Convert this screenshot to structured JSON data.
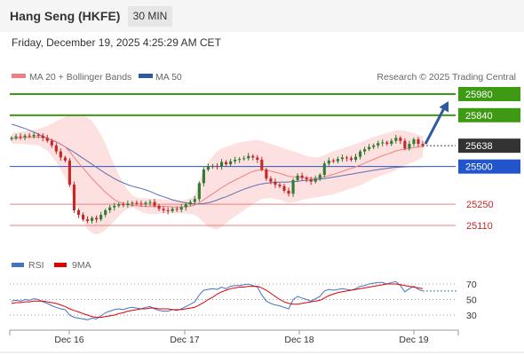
{
  "header": {
    "title": "Hang Seng (HKFE)",
    "timeframe": "30 MIN"
  },
  "datetime": "Friday, December 19, 2025 4:25:29 AM CET",
  "legend": {
    "ma_bb": "MA 20 + Bollinger Bands",
    "ma50": "MA 50",
    "copyright": "Research © 2025 Trading Central"
  },
  "rsi_legend": {
    "rsi": "RSI",
    "ma9": "9MA"
  },
  "colors": {
    "up_candle": "#2e7d32",
    "down_candle": "#c62828",
    "band_fill": "#fde0e0",
    "ma20": "#f08080",
    "ma50": "#5a6fb5",
    "resistance": "#3d9a12",
    "pivot": "#2255cc",
    "support": "#e88080",
    "arrow": "#2d5a9e",
    "price_tag": "#333333",
    "rsi": "#4472c4",
    "rsi_ma": "#e00000"
  },
  "chart_data": [
    {
      "type": "candlestick",
      "ylim": [
        25050,
        26010
      ],
      "x_labels": [
        "Dec 16",
        "Dec 17",
        "Dec 18",
        "Dec 19"
      ],
      "levels": [
        {
          "value": 25980,
          "label": "25980",
          "kind": "resistance"
        },
        {
          "value": 25840,
          "label": "25840",
          "kind": "resistance"
        },
        {
          "value": 25638,
          "label": "25638",
          "kind": "last"
        },
        {
          "value": 25500,
          "label": "25500",
          "kind": "pivot"
        },
        {
          "value": 25250,
          "label": "25250",
          "kind": "support"
        },
        {
          "value": 25110,
          "label": "25110",
          "kind": "support"
        }
      ],
      "closes": [
        25690,
        25700,
        25695,
        25705,
        25700,
        25710,
        25705,
        25690,
        25670,
        25640,
        25600,
        25560,
        25540,
        25380,
        25210,
        25180,
        25150,
        25140,
        25160,
        25150,
        25180,
        25210,
        25230,
        25240,
        25250,
        25245,
        25255,
        25260,
        25255,
        25250,
        25260,
        25265,
        25240,
        25220,
        25210,
        25205,
        25220,
        25215,
        25230,
        25250,
        25265,
        25285,
        25390,
        25480,
        25500,
        25505,
        25500,
        25530,
        25515,
        25535,
        25545,
        25550,
        25555,
        25570,
        25560,
        25545,
        25480,
        25420,
        25400,
        25380,
        25370,
        25340,
        25320,
        25410,
        25440,
        25425,
        25415,
        25400,
        25420,
        25445,
        25520,
        25540,
        25535,
        25550,
        25560,
        25555,
        25545,
        25565,
        25600,
        25615,
        25630,
        25640,
        25655,
        25660,
        25650,
        25670,
        25690,
        25670,
        25620,
        25650,
        25680,
        25650,
        25638
      ],
      "ma20": [
        25685,
        25688,
        25690,
        25692,
        25693,
        25695,
        25696,
        25693,
        25688,
        25678,
        25665,
        25648,
        25630,
        25600,
        25560,
        25525,
        25490,
        25455,
        25420,
        25390,
        25360,
        25330,
        25305,
        25280,
        25265,
        25255,
        25248,
        25243,
        25240,
        25237,
        25236,
        25235,
        25236,
        25236,
        25236,
        25235,
        25233,
        25232,
        25232,
        25234,
        25238,
        25245,
        25260,
        25280,
        25300,
        25320,
        25340,
        25360,
        25378,
        25395,
        25410,
        25425,
        25440,
        25455,
        25468,
        25475,
        25478,
        25476,
        25470,
        25462,
        25455,
        25445,
        25435,
        25432,
        25430,
        25428,
        25425,
        25422,
        25422,
        25425,
        25432,
        25440,
        25448,
        25458,
        25468,
        25478,
        25488,
        25498,
        25510,
        25522,
        25535,
        25548,
        25560,
        25572,
        25582,
        25592,
        25603,
        25610,
        25615,
        25620,
        25625,
        25630,
        25635
      ],
      "bb_upper": [
        25720,
        25725,
        25730,
        25735,
        25740,
        25745,
        25750,
        25760,
        25770,
        25785,
        25800,
        25815,
        25830,
        25840,
        25845,
        25845,
        25840,
        25825,
        25800,
        25760,
        25710,
        25650,
        25580,
        25510,
        25445,
        25390,
        25345,
        25310,
        25295,
        25290,
        25290,
        25288,
        25287,
        25285,
        25282,
        25280,
        25278,
        25276,
        25275,
        25280,
        25290,
        25310,
        25400,
        25480,
        25530,
        25570,
        25600,
        25620,
        25630,
        25640,
        25650,
        25660,
        25665,
        25670,
        25675,
        25675,
        25670,
        25660,
        25650,
        25640,
        25630,
        25620,
        25610,
        25600,
        25590,
        25580,
        25570,
        25565,
        25560,
        25565,
        25575,
        25590,
        25600,
        25610,
        25620,
        25630,
        25640,
        25650,
        25660,
        25672,
        25685,
        25695,
        25705,
        25715,
        25722,
        25730,
        25740,
        25740,
        25735,
        25730,
        25720,
        25710,
        25700
      ],
      "bb_lower": [
        25650,
        25650,
        25650,
        25648,
        25645,
        25643,
        25640,
        25625,
        25605,
        25570,
        25530,
        25480,
        25430,
        25360,
        25275,
        25205,
        25140,
        25085,
        25060,
        25050,
        25060,
        25080,
        25110,
        25140,
        25170,
        25200,
        25220,
        25230,
        25215,
        25200,
        25190,
        25185,
        25185,
        25187,
        25190,
        25192,
        25190,
        25188,
        25190,
        25188,
        25186,
        25180,
        25160,
        25130,
        25100,
        25090,
        25085,
        25100,
        25125,
        25150,
        25170,
        25190,
        25210,
        25230,
        25250,
        25270,
        25285,
        25290,
        25290,
        25285,
        25280,
        25270,
        25260,
        25262,
        25270,
        25280,
        25285,
        25290,
        25295,
        25300,
        25305,
        25310,
        25315,
        25325,
        25335,
        25345,
        25355,
        25365,
        25375,
        25390,
        25405,
        25420,
        25432,
        25442,
        25452,
        25462,
        25475,
        25490,
        25505,
        25520,
        25530,
        25545,
        25560
      ],
      "ma50": [
        25780,
        25772,
        25762,
        25752,
        25740,
        25728,
        25715,
        25700,
        25688,
        25675,
        25662,
        25648,
        25630,
        25612,
        25595,
        25575,
        25555,
        25535,
        25515,
        25495,
        25475,
        25455,
        25438,
        25420,
        25405,
        25392,
        25380,
        25370,
        25362,
        25355,
        25345,
        25335,
        25322,
        25310,
        25300,
        25290,
        25280,
        25272,
        25265,
        25260,
        25255,
        25252,
        25252,
        25255,
        25260,
        25268,
        25278,
        25290,
        25300,
        25312,
        25325,
        25338,
        25350,
        25360,
        25370,
        25378,
        25385,
        25390,
        25393,
        25395,
        25396,
        25397,
        25398,
        25400,
        25403,
        25406,
        25408,
        25410,
        25413,
        25416,
        25420,
        25425,
        25430,
        25435,
        25440,
        25445,
        25450,
        25455,
        25460,
        25465,
        25470,
        25475,
        25480,
        25484,
        25488,
        25492,
        25495,
        25497,
        25498,
        25499,
        25500,
        25500,
        25500
      ],
      "projection": {
        "from": 25638,
        "to": 25980
      }
    },
    {
      "type": "line",
      "title": "RSI",
      "ylim": [
        20,
        80
      ],
      "y_ticks": [
        70,
        50,
        30
      ],
      "rsi": [
        48,
        49,
        48,
        50,
        49,
        51,
        50,
        47,
        45,
        42,
        40,
        38,
        37,
        30,
        27,
        26,
        25,
        24,
        26,
        25,
        29,
        33,
        35,
        37,
        38,
        37,
        39,
        40,
        39,
        38,
        40,
        41,
        38,
        36,
        35,
        35,
        37,
        36,
        38,
        41,
        44,
        47,
        56,
        62,
        63,
        64,
        63,
        66,
        64,
        67,
        68,
        68,
        69,
        70,
        68,
        66,
        56,
        48,
        45,
        43,
        42,
        40,
        38,
        50,
        54,
        52,
        50,
        48,
        51,
        54,
        61,
        63,
        62,
        63,
        64,
        63,
        62,
        64,
        67,
        68,
        70,
        71,
        72,
        72,
        70,
        72,
        73,
        68,
        60,
        64,
        67,
        63,
        61
      ],
      "ma9": [
        45,
        46,
        46,
        47,
        47,
        48,
        48,
        48,
        47,
        46,
        45,
        43,
        41,
        38,
        36,
        34,
        32,
        30,
        28,
        27,
        27,
        28,
        29,
        30,
        32,
        33,
        35,
        36,
        37,
        38,
        38,
        39,
        39,
        38,
        38,
        38,
        37,
        37,
        37,
        38,
        39,
        40,
        43,
        46,
        50,
        53,
        57,
        60,
        62,
        64,
        65,
        66,
        66,
        67,
        67,
        67,
        65,
        62,
        58,
        54,
        50,
        47,
        45,
        44,
        44,
        45,
        46,
        47,
        48,
        49,
        52,
        55,
        57,
        59,
        60,
        61,
        62,
        63,
        64,
        65,
        66,
        67,
        68,
        69,
        70,
        70,
        70,
        69,
        68,
        67,
        66,
        65,
        64
      ]
    }
  ]
}
